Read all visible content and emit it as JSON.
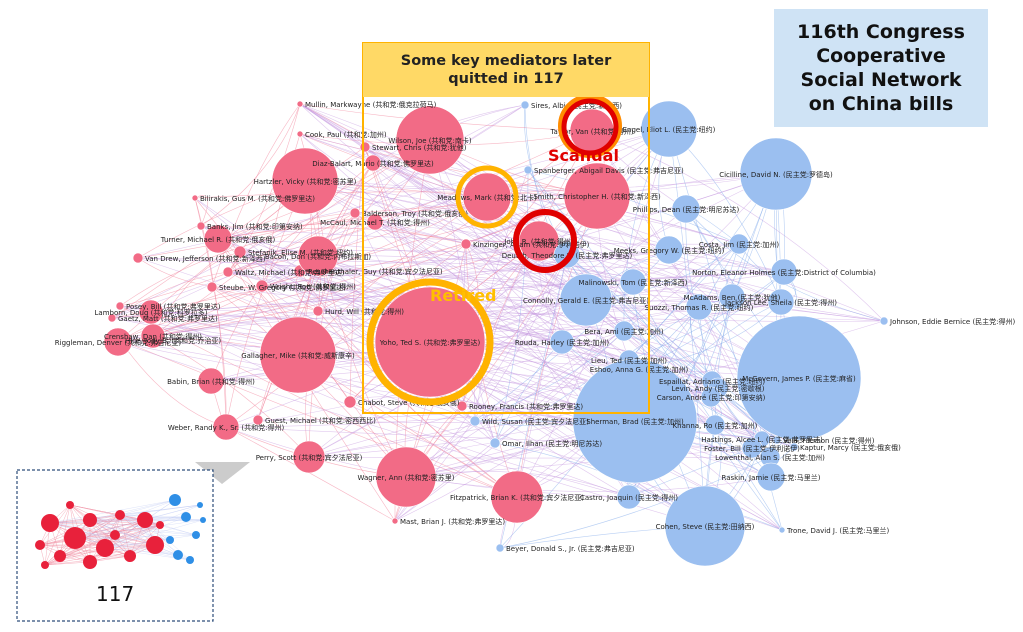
{
  "title": "116th Congress\nCooperative\nSocial Network\non China bills",
  "callout": "Some key mediators later\nquitted in 117",
  "scandal_label": "Scandal",
  "retired_label": "Retired",
  "inset_label": "117",
  "colors": {
    "republican": "#f26b86",
    "democrat": "#9bbff0",
    "rep_edge": "#f07a93",
    "dem_edge": "#7ea8ea",
    "highlight_red": "#e00000",
    "highlight_gold": "#ffb300",
    "callout_bg": "#ffd966",
    "title_bg": "#cfe3f5"
  },
  "nodes": [
    {
      "label": "Mullin, Markwayne (共和党:俄克拉荷马)",
      "party": "R",
      "size": 3
    },
    {
      "label": "Cook, Paul (共和党:加州)",
      "party": "R",
      "size": 3
    },
    {
      "label": "Hartzler, Vicky (共和党:密苏里)",
      "party": "R",
      "size": 33
    },
    {
      "label": "Stewart, Chris (共和党:犹他)",
      "party": "R",
      "size": 5
    },
    {
      "label": "Diaz-Balart, Mario (共和党:佛罗里达)",
      "party": "R",
      "size": 8
    },
    {
      "label": "Bilirakis, Gus M. (共和党:佛罗里达)",
      "party": "R",
      "size": 3
    },
    {
      "label": "Balderson, Troy (共和党:俄亥俄)",
      "party": "R",
      "size": 5
    },
    {
      "label": "McCaul, Michael T. (共和党:得州)",
      "party": "R",
      "size": 8
    },
    {
      "label": "Banks, Jim (共和党:印第安纳)",
      "party": "R",
      "size": 4
    },
    {
      "label": "Turner, Michael R. (共和党:俄亥俄)",
      "party": "R",
      "size": 14
    },
    {
      "label": "Stefanik, Elise M. (共和党:纽约)",
      "party": "R",
      "size": 6
    },
    {
      "label": "Van Drew, Jefferson (共和党:新泽西)",
      "party": "R",
      "size": 5
    },
    {
      "label": "Yoho, Ted S. (共和党:弗罗里达)",
      "party": "R",
      "size": 55
    },
    {
      "label": "Reschenthaler, Guy (共和党:宾夕法尼亚)",
      "party": "R",
      "size": 6
    },
    {
      "label": "Waltz, Michael (共和党:弗罗里达)",
      "party": "R",
      "size": 5
    },
    {
      "label": "Bacon, Don (共和党:内布拉斯加)",
      "party": "R",
      "size": 20
    },
    {
      "label": "Kinzinger, Adam (共和党:伊利诺伊)",
      "party": "R",
      "size": 5
    },
    {
      "label": "Steube, W. Gregory (共和党:佛罗里达)",
      "party": "R",
      "size": 5
    },
    {
      "label": "Wright, Ron (共和党:得州)",
      "party": "R",
      "size": 6
    },
    {
      "label": "Posey, Bill (共和党:弗罗里达)",
      "party": "R",
      "size": 4
    },
    {
      "label": "Lamborn, Doug (共和党:科罗拉多)",
      "party": "R",
      "size": 12
    },
    {
      "label": "Gaetz, Matt (共和党:弗罗里达)",
      "party": "R",
      "size": 4
    },
    {
      "label": "Crenshaw, Dan (共和党:得州)",
      "party": "R",
      "size": 12
    },
    {
      "label": "Hurd, Will (共和党:得州)",
      "party": "R",
      "size": 5
    },
    {
      "label": "Hice, Jody B. (共和党:乔治亚)",
      "party": "R",
      "size": 3
    },
    {
      "label": "Riggleman, Denver (共和党:弗吉尼亚)",
      "party": "R",
      "size": 14
    },
    {
      "label": "Gallagher, Mike (共和党:威斯康辛)",
      "party": "R",
      "size": 38
    },
    {
      "label": "Babin, Brian (共和党:得州)",
      "party": "R",
      "size": 13
    },
    {
      "label": "Chabot, Steve (共和党:俄亥俄)",
      "party": "R",
      "size": 6
    },
    {
      "label": "Guest, Michael (共和党:密西西比)",
      "party": "R",
      "size": 5
    },
    {
      "label": "Weber, Randy K., Sr. (共和党:得州)",
      "party": "R",
      "size": 13
    },
    {
      "label": "Perry, Scott (共和党:宾夕法尼亚)",
      "party": "R",
      "size": 16
    },
    {
      "label": "Wagner, Ann (共和党:密苏里)",
      "party": "R",
      "size": 30
    },
    {
      "label": "Fitzpatrick, Brian K. (共和党:宾夕法尼亚)",
      "party": "R",
      "size": 26
    },
    {
      "label": "Mast, Brian J. (共和党:弗罗里达)",
      "party": "R",
      "size": 3
    },
    {
      "label": "Wilson, Joe (共和党:南卡)",
      "party": "R",
      "size": 34
    },
    {
      "label": "Meadows, Mark (共和党:北卡)",
      "party": "R",
      "size": 24
    },
    {
      "label": "Rooney, Francis (共和党:弗罗里达)",
      "party": "R",
      "size": 5
    },
    {
      "label": "Wild, Susan (民主党:宾夕法尼亚)",
      "party": "D",
      "size": 5
    },
    {
      "label": "Omar, Ilhan (民主党:明尼苏达)",
      "party": "D",
      "size": 5
    },
    {
      "label": "Beyer, Donald S., Jr. (民主党:弗吉尼亚)",
      "party": "D",
      "size": 4
    },
    {
      "label": "Sires, Albio (民主党:新泽西)",
      "party": "D",
      "size": 4
    },
    {
      "label": "Taylor, Van (共和党:得州)",
      "party": "R",
      "size": 22
    },
    {
      "label": "Engel, Eliot L. (民主党:纽约)",
      "party": "D",
      "size": 28
    },
    {
      "label": "Spanberger, Abigail Davis (民主党:弗吉尼亚)",
      "party": "D",
      "size": 4
    },
    {
      "label": "Smith, Christopher H. (共和党:新泽西)",
      "party": "R",
      "size": 33
    },
    {
      "label": "Phillips, Dean (民主党:明尼苏达)",
      "party": "D",
      "size": 14
    },
    {
      "label": "Cicilline, David N. (民主党:罗德岛)",
      "party": "D",
      "size": 36
    },
    {
      "label": "John R. (共和党:得州)",
      "party": "R",
      "size": 20
    },
    {
      "label": "Deutch, Theodore E. (民主党:弗罗里达)",
      "party": "D",
      "size": 13
    },
    {
      "label": "Meeks, Gregory W. (民主党:纽约)",
      "party": "D",
      "size": 14
    },
    {
      "label": "Costa, Jim (民主党:加州)",
      "party": "D",
      "size": 10
    },
    {
      "label": "Malinowski, Tom (民主党:新泽西)",
      "party": "D",
      "size": 13
    },
    {
      "label": "Norton, Eleanor Holmes (民主党:District of Columbia)",
      "party": "D",
      "size": 13
    },
    {
      "label": "Connolly, Gerald E. (民主党:弗吉尼亚)",
      "party": "D",
      "size": 26
    },
    {
      "label": "McAdams, Ben (民主党:犹他)",
      "party": "D",
      "size": 13
    },
    {
      "label": "Jackson Lee, Sheila (民主党:得州)",
      "party": "D",
      "size": 13
    },
    {
      "label": "Suozzi, Thomas R. (民主党:纽约)",
      "party": "D",
      "size": 13
    },
    {
      "label": "Bera, Ami (民主党:加州)",
      "party": "D",
      "size": 10
    },
    {
      "label": "Johnson, Eddie Bernice (民主党:得州)",
      "party": "D",
      "size": 4
    },
    {
      "label": "Rouda, Harley (民主党:加州)",
      "party": "D",
      "size": 12
    },
    {
      "label": "Lieu, Ted (民主党:加州)",
      "party": "D",
      "size": 10
    },
    {
      "label": "Castro, Joaquin (民主党:得州)",
      "party": "D",
      "size": 12
    },
    {
      "label": "Eshoo, Anna G. (民主党:加州)",
      "party": "D",
      "size": 10
    },
    {
      "label": "Kaptur, Marcy (民主党:俄亥俄)",
      "party": "D",
      "size": 4
    },
    {
      "label": "Vela, Filemon (民主党:得州)",
      "party": "D",
      "size": 4
    },
    {
      "label": "Espaillat, Adriano (民主党:纽约)",
      "party": "D",
      "size": 10
    },
    {
      "label": "Levin, Andy (民主党:密歇根)",
      "party": "D",
      "size": 10
    },
    {
      "label": "Carson, André (民主党:印第安纳)",
      "party": "D",
      "size": 10
    },
    {
      "label": "McGovern, James P. (民主党:麻省)",
      "party": "D",
      "size": 62
    },
    {
      "label": "Khanna, Ro (民主党:加州)",
      "party": "D",
      "size": 10
    },
    {
      "label": "Hastings, Alcee L. (民主党:弗罗里达)",
      "party": "D",
      "size": 8
    },
    {
      "label": "Foster, Bill (民主党:伊利诺伊)",
      "party": "D",
      "size": 10
    },
    {
      "label": "Lowenthal, Alan S. (民主党:加州)",
      "party": "D",
      "size": 10
    },
    {
      "label": "Sherman, Brad (民主党:加州)",
      "party": "D",
      "size": 62
    },
    {
      "label": "Raskin, Jamie (民主党:马里兰)",
      "party": "D",
      "size": 14
    },
    {
      "label": "Cohen, Steve (民主党:田纳西)",
      "party": "D",
      "size": 40
    },
    {
      "label": "Trone, David J. (民主党:马里兰)",
      "party": "D",
      "size": 3
    }
  ]
}
